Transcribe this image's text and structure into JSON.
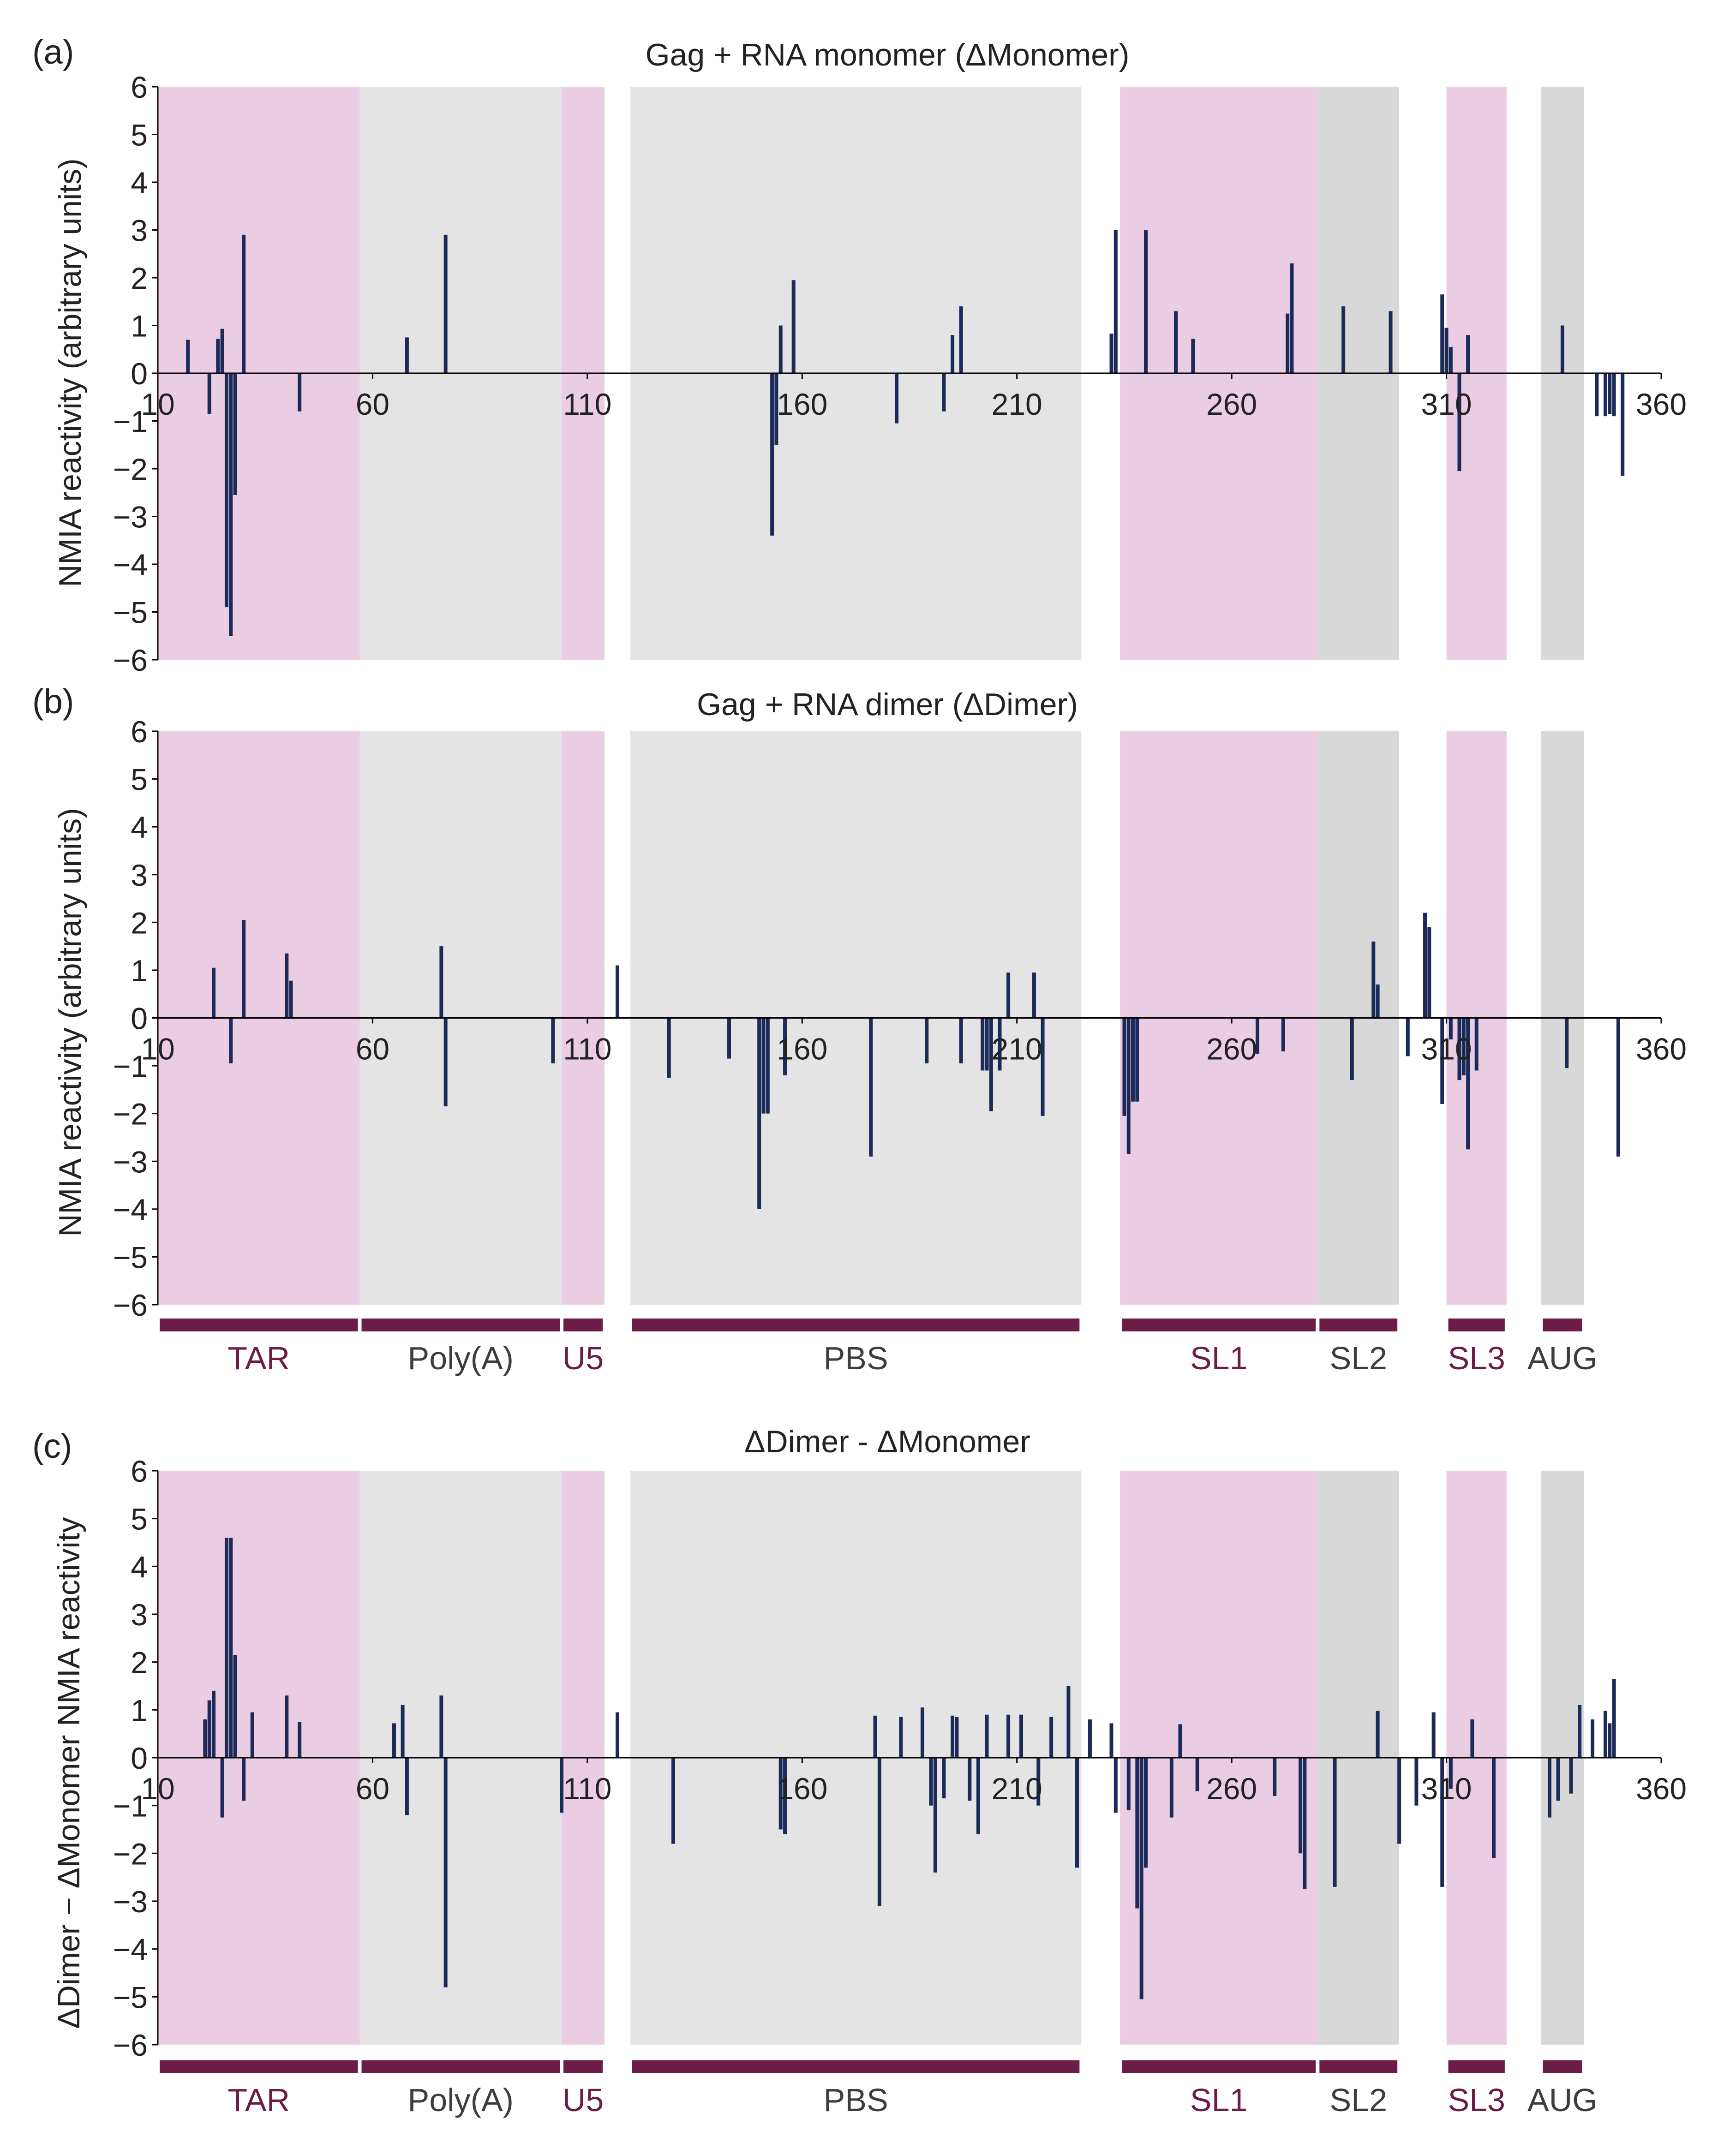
{
  "colors": {
    "bar": "#1b2a58",
    "pink": "#ebcde3",
    "light_gray": "#e4e4e4",
    "mid_gray": "#d8d8d8",
    "region_label_pink": "#6b1d48",
    "region_label_gray": "#3d3d3d",
    "region_bar": "#6b1d48",
    "axis": "#000000",
    "text": "#222222"
  },
  "regions": [
    {
      "name": "TAR",
      "start": 10,
      "end": 57,
      "color": "pink",
      "label_color": "region_label_pink"
    },
    {
      "name": "Poly(A)",
      "start": 57,
      "end": 104,
      "color": "light_gray",
      "label_color": "region_label_gray"
    },
    {
      "name": "U5",
      "start": 104,
      "end": 114,
      "color": "pink",
      "label_color": "region_label_pink"
    },
    {
      "name": "PBS",
      "start": 120,
      "end": 225,
      "color": "light_gray",
      "label_color": "region_label_gray"
    },
    {
      "name": "SL1",
      "start": 234,
      "end": 280,
      "color": "pink",
      "label_color": "region_label_pink"
    },
    {
      "name": "SL2",
      "start": 280,
      "end": 299,
      "color": "mid_gray",
      "label_color": "region_label_gray"
    },
    {
      "name": "SL3",
      "start": 310,
      "end": 324,
      "color": "pink",
      "label_color": "region_label_pink"
    },
    {
      "name": "AUG",
      "start": 332,
      "end": 342,
      "color": "mid_gray",
      "label_color": "region_label_gray"
    }
  ],
  "chart_data": [
    {
      "type": "bar",
      "panel_label": "(a)",
      "title": "Gag + RNA monomer (ΔMonomer)",
      "ylabel": "NMIA reactivity (arbitrary units)",
      "xlabel": "",
      "xlim": [
        10,
        360
      ],
      "ylim": [
        -6,
        6
      ],
      "xticks": [
        10,
        60,
        110,
        160,
        210,
        260,
        310,
        360
      ],
      "xtick_labels": [
        "10",
        "60",
        "110",
        "160",
        "210",
        "260",
        "310",
        "360"
      ],
      "yticks": [
        6,
        5,
        4,
        3,
        2,
        1,
        0,
        -1,
        -2,
        -3,
        -4,
        -5,
        -6
      ],
      "ytick_labels": [
        "6",
        "5",
        "4",
        "3",
        "2",
        "1",
        "0",
        "−1",
        "−2",
        "−3",
        "−4",
        "−5",
        "−6"
      ],
      "show_region_bars": false,
      "x": [
        17,
        22,
        24,
        25,
        26,
        27,
        28,
        30,
        43,
        68,
        77,
        153,
        154,
        155,
        158,
        182,
        193,
        195,
        197,
        232,
        233,
        240,
        247,
        251,
        273,
        274,
        275,
        286,
        297,
        309,
        310,
        311,
        313,
        315,
        314,
        337,
        345,
        347,
        348,
        349,
        351
      ],
      "values": [
        0.7,
        -0.85,
        0.72,
        0.93,
        -4.9,
        -5.5,
        -2.55,
        2.9,
        -0.8,
        0.75,
        2.9,
        -3.4,
        -1.5,
        1.0,
        1.95,
        -1.05,
        -0.8,
        0.8,
        1.4,
        0.83,
        3.0,
        3.0,
        1.3,
        0.72,
        1.25,
        2.3,
        0.0,
        1.4,
        1.3,
        1.65,
        0.95,
        0.55,
        -2.05,
        0.8,
        0.0,
        1.0,
        -0.9,
        -0.9,
        -0.85,
        -0.9,
        -2.15
      ]
    },
    {
      "type": "bar",
      "panel_label": "(b)",
      "title": "Gag + RNA dimer (ΔDimer)",
      "ylabel": "NMIA reactivity (arbitrary units)",
      "xlabel": "",
      "xlim": [
        10,
        360
      ],
      "ylim": [
        -6,
        6
      ],
      "xticks": [
        10,
        60,
        110,
        160,
        210,
        260,
        310,
        360
      ],
      "xtick_labels": [
        "10",
        "60",
        "110",
        "160",
        "210",
        "260",
        "310",
        "360"
      ],
      "yticks": [
        6,
        5,
        4,
        3,
        2,
        1,
        0,
        -1,
        -2,
        -3,
        -4,
        -5,
        -6
      ],
      "ytick_labels": [
        "6",
        "5",
        "4",
        "3",
        "2",
        "1",
        "0",
        "−1",
        "−2",
        "−3",
        "−4",
        "−5",
        "−6"
      ],
      "show_region_bars": true,
      "x": [
        23,
        27,
        30,
        40,
        41,
        76,
        77,
        102,
        117,
        129,
        143,
        150,
        151,
        152,
        156,
        176,
        189,
        197,
        202,
        203,
        204,
        206,
        208,
        214,
        216,
        235,
        236,
        237,
        238,
        266,
        272,
        288,
        293,
        294,
        301,
        305,
        306,
        309,
        311,
        313,
        314,
        315,
        317,
        338,
        350
      ],
      "values": [
        1.05,
        -0.95,
        2.05,
        1.35,
        0.78,
        1.5,
        -1.85,
        -0.95,
        1.1,
        -1.25,
        -0.85,
        -4.0,
        -2.0,
        -2.0,
        -1.2,
        -2.9,
        -0.95,
        -0.95,
        -1.1,
        -1.1,
        -1.95,
        -1.1,
        0.95,
        0.95,
        -2.05,
        -2.05,
        -2.85,
        -1.75,
        -1.75,
        -0.75,
        -0.7,
        -1.3,
        1.6,
        0.7,
        -0.8,
        2.2,
        1.9,
        -1.8,
        -0.45,
        -1.3,
        -1.2,
        -2.75,
        -1.1,
        -1.05,
        -2.9
      ]
    },
    {
      "type": "bar",
      "panel_label": "(c)",
      "title": "ΔDimer - ΔMonomer",
      "ylabel": "ΔDimer − ΔMonomer NMIA reactivity",
      "xlabel": "",
      "xlim": [
        10,
        360
      ],
      "ylim": [
        -6,
        6
      ],
      "xticks": [
        10,
        60,
        110,
        160,
        210,
        260,
        310,
        360
      ],
      "xtick_labels": [
        "10",
        "60",
        "110",
        "160",
        "210",
        "260",
        "310",
        "360"
      ],
      "yticks": [
        6,
        5,
        4,
        3,
        2,
        1,
        0,
        -1,
        -2,
        -3,
        -4,
        -5,
        -6
      ],
      "ytick_labels": [
        "6",
        "5",
        "4",
        "3",
        "2",
        "1",
        "0",
        "−1",
        "−2",
        "−3",
        "−4",
        "−5",
        "−6"
      ],
      "show_region_bars": true,
      "x": [
        21,
        22,
        23,
        25,
        26,
        27,
        28,
        30,
        32,
        40,
        43,
        65,
        67,
        68,
        76,
        77,
        104,
        117,
        130,
        155,
        156,
        177,
        178,
        183,
        188,
        190,
        191,
        193,
        195,
        196,
        199,
        201,
        203,
        208,
        211,
        215,
        218,
        222,
        224,
        227,
        232,
        233,
        236,
        238,
        239,
        240,
        246,
        248,
        252,
        270,
        276,
        277,
        284,
        294,
        299,
        303,
        307,
        309,
        311,
        316,
        321,
        334,
        336,
        339,
        341,
        344,
        347,
        348,
        349
      ],
      "values": [
        0.8,
        1.2,
        1.4,
        -1.25,
        4.6,
        4.6,
        2.15,
        -0.9,
        0.95,
        1.3,
        0.75,
        0.72,
        1.1,
        -1.2,
        1.3,
        -4.8,
        -1.15,
        0.95,
        -1.8,
        -1.5,
        -1.6,
        0.88,
        -3.1,
        0.85,
        1.05,
        -1.0,
        -2.4,
        -0.85,
        0.88,
        0.85,
        -0.9,
        -1.6,
        0.9,
        0.9,
        0.9,
        -1.0,
        0.85,
        1.5,
        -2.3,
        0.8,
        0.72,
        -1.15,
        -1.1,
        -3.15,
        -5.05,
        -2.3,
        -1.25,
        0.7,
        -0.7,
        -0.8,
        -2.0,
        -2.75,
        -2.7,
        0.98,
        -1.8,
        -1.0,
        0.95,
        -2.7,
        -0.65,
        0.8,
        -2.1,
        -1.25,
        -0.9,
        -0.75,
        1.1,
        0.8,
        0.98,
        0.72,
        1.65
      ]
    }
  ]
}
